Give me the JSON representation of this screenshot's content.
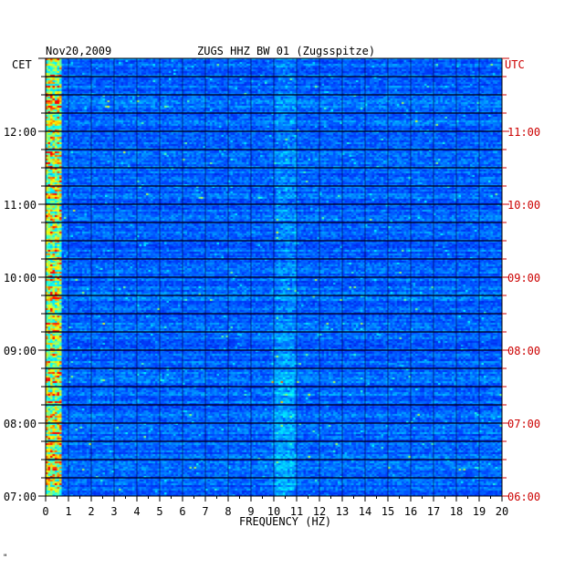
{
  "header": {
    "date": "Nov20,2009",
    "station": "ZUGS HHZ BW 01 (Zugsspitze)"
  },
  "chart_data": {
    "type": "heatmap",
    "title": "ZUGS HHZ BW 01 (Zugsspitze)",
    "date": "Nov20,2009",
    "xlabel": "FREQUENCY (HZ)",
    "xlim": [
      0,
      20
    ],
    "x_ticks": [
      "0",
      "1",
      "2",
      "3",
      "4",
      "5",
      "6",
      "7",
      "8",
      "9",
      "10",
      "11",
      "12",
      "13",
      "14",
      "15",
      "16",
      "17",
      "18",
      "19",
      "20"
    ],
    "left_axis": {
      "label": "CET",
      "ticks": [
        "12:00",
        "11:00",
        "10:00",
        "09:00",
        "08:00",
        "07:00"
      ],
      "range_hours": [
        7,
        13
      ]
    },
    "right_axis": {
      "label": "UTC",
      "ticks": [
        "11:00",
        "10:00",
        "09:00",
        "08:00",
        "07:00",
        "06:00"
      ],
      "range_hours": [
        6,
        12
      ]
    },
    "colormap": [
      "#000066",
      "#0000cc",
      "#0044ff",
      "#00aaff",
      "#00ffff",
      "#ffff00",
      "#ff0000"
    ],
    "label_color_left": "#000000",
    "label_color_right": "#cc0000"
  },
  "footnote": "\""
}
